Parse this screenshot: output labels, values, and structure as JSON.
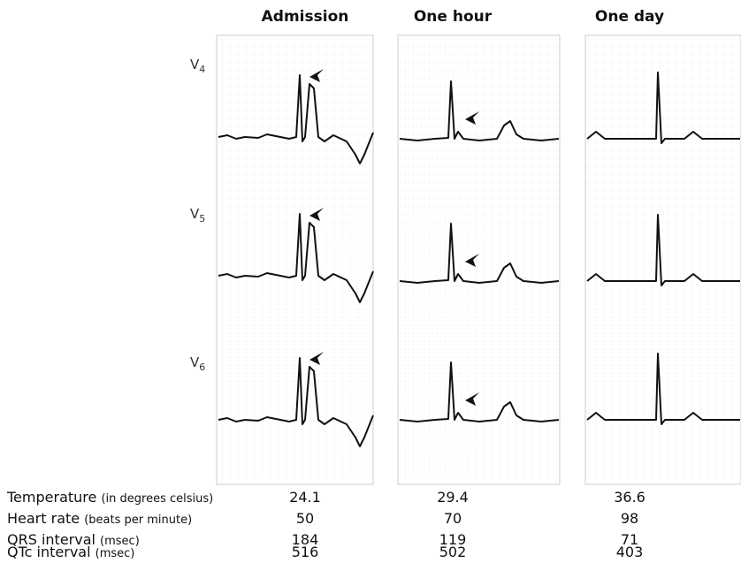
{
  "column_headers": [
    "Admission",
    "One hour",
    "One day"
  ],
  "leads": [
    {
      "base": "V",
      "sub": "4"
    },
    {
      "base": "V",
      "sub": "5"
    },
    {
      "base": "V",
      "sub": "6"
    }
  ],
  "table": {
    "rows": [
      {
        "label": "Temperature",
        "unit": "(in degrees celsius)",
        "values": [
          24.1,
          29.4,
          36.6
        ]
      },
      {
        "label": "Heart rate",
        "unit": "(beats per minute)",
        "values": [
          50,
          70,
          98
        ]
      },
      {
        "label": "QRS interval",
        "unit": "(msec)",
        "values": [
          184,
          119,
          71
        ]
      },
      {
        "label": "QTc interval",
        "unit": "(msec)",
        "values": [
          516,
          502,
          403
        ]
      }
    ]
  }
}
